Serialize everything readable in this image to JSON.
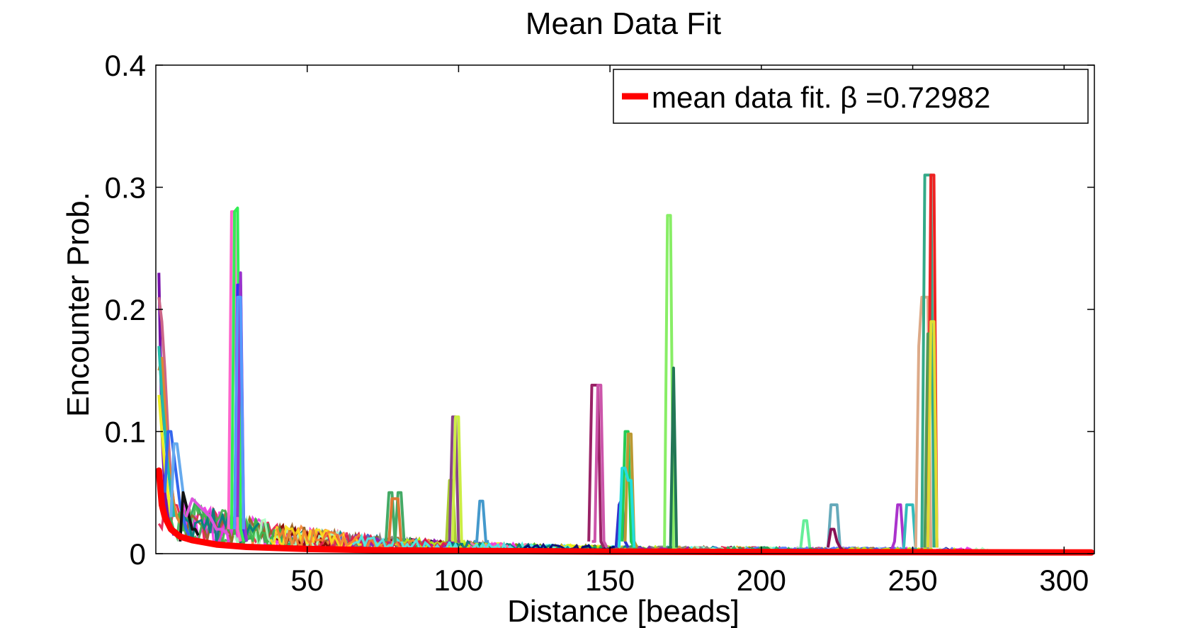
{
  "chart_data": {
    "type": "line",
    "title": "Mean Data Fit",
    "xlabel": "Distance [beads]",
    "ylabel": "Encounter Prob.",
    "xlim": [
      0,
      310
    ],
    "ylim": [
      0,
      0.4
    ],
    "x_ticks": [
      50,
      100,
      150,
      200,
      250,
      300
    ],
    "x_tick_labels": [
      "50",
      "100",
      "150",
      "200",
      "250",
      "300"
    ],
    "y_ticks": [
      0,
      0.1,
      0.2,
      0.3,
      0.4
    ],
    "y_tick_labels": [
      "0",
      "0.1",
      "0.2",
      "0.3",
      "0.4"
    ],
    "grid": false,
    "legend": {
      "placement": "top-right",
      "entries": [
        {
          "label": "mean data fit. β =0.72982",
          "color": "#ff0000"
        }
      ]
    },
    "fit": {
      "name": "mean data fit. β =0.72982",
      "color": "#ff0000",
      "beta": 0.72982,
      "x": [
        1,
        2,
        3,
        5,
        8,
        12,
        20,
        30,
        50,
        75,
        100,
        150,
        200,
        250,
        300,
        309
      ],
      "y": [
        0.068,
        0.04,
        0.03,
        0.02,
        0.014,
        0.011,
        0.0075,
        0.0055,
        0.0038,
        0.0028,
        0.0023,
        0.0017,
        0.0014,
        0.0012,
        0.001,
        0.001
      ]
    },
    "series": [
      {
        "color": "#ff66cc",
        "x": [
          24,
          25,
          26,
          27,
          28
        ],
        "y": [
          0.02,
          0.28,
          0.28,
          0.02,
          0.01
        ]
      },
      {
        "color": "#33ee55",
        "x": [
          25,
          26,
          27,
          28,
          29
        ],
        "y": [
          0.02,
          0.28,
          0.283,
          0.02,
          0.01
        ]
      },
      {
        "color": "#3333ee",
        "x": [
          26,
          27,
          28,
          29,
          30
        ],
        "y": [
          0.02,
          0.22,
          0.22,
          0.02,
          0.01
        ]
      },
      {
        "color": "#9933cc",
        "x": [
          27,
          28,
          29,
          30
        ],
        "y": [
          0.03,
          0.23,
          0.03,
          0.01
        ]
      },
      {
        "color": "#5599ff",
        "x": [
          26,
          27,
          28,
          29
        ],
        "y": [
          0.02,
          0.21,
          0.21,
          0.02
        ]
      },
      {
        "color": "#44aa66",
        "x": [
          76,
          77,
          78,
          79,
          80,
          81,
          82
        ],
        "y": [
          0.01,
          0.05,
          0.05,
          0.01,
          0.05,
          0.05,
          0.01
        ]
      },
      {
        "color": "#dd7733",
        "x": [
          77,
          78,
          79,
          80,
          81
        ],
        "y": [
          0.01,
          0.045,
          0.045,
          0.045,
          0.01
        ]
      },
      {
        "color": "#aacc33",
        "x": [
          96,
          97,
          98,
          99,
          100
        ],
        "y": [
          0.01,
          0.06,
          0.06,
          0.01,
          0.01
        ]
      },
      {
        "color": "#884488",
        "x": [
          97,
          98,
          99,
          100,
          101
        ],
        "y": [
          0.01,
          0.112,
          0.112,
          0.01,
          0.01
        ]
      },
      {
        "color": "#ccee44",
        "x": [
          98,
          99,
          100,
          101,
          102
        ],
        "y": [
          0.01,
          0.112,
          0.112,
          0.01,
          0.01
        ]
      },
      {
        "color": "#4499cc",
        "x": [
          105,
          106,
          107,
          108,
          109,
          110
        ],
        "y": [
          0.01,
          0.01,
          0.043,
          0.043,
          0.01,
          0.01
        ]
      },
      {
        "color": "#992266",
        "x": [
          143,
          144,
          145,
          146,
          147,
          148
        ],
        "y": [
          0.01,
          0.138,
          0.138,
          0.138,
          0.01,
          0.005
        ]
      },
      {
        "color": "#cc55aa",
        "x": [
          144,
          145,
          146,
          147,
          148,
          149
        ],
        "y": [
          0.01,
          0.01,
          0.138,
          0.138,
          0.01,
          0.005
        ]
      },
      {
        "color": "#3333cc",
        "x": [
          152,
          153,
          154,
          155,
          156
        ],
        "y": [
          0.005,
          0.04,
          0.045,
          0.01,
          0.005
        ]
      },
      {
        "color": "#22cc55",
        "x": [
          154,
          155,
          156,
          157,
          158,
          159
        ],
        "y": [
          0.01,
          0.1,
          0.1,
          0.01,
          0.005,
          0.005
        ]
      },
      {
        "color": "#bb9933",
        "x": [
          155,
          156,
          157,
          158,
          159
        ],
        "y": [
          0.01,
          0.098,
          0.098,
          0.01,
          0.005
        ]
      },
      {
        "color": "#22dddd",
        "x": [
          153,
          154,
          155,
          156,
          157,
          158
        ],
        "y": [
          0.005,
          0.07,
          0.07,
          0.06,
          0.06,
          0.005
        ]
      },
      {
        "color": "#88ee66",
        "x": [
          168,
          169,
          170,
          171,
          172
        ],
        "y": [
          0.005,
          0.277,
          0.277,
          0.005,
          0.005
        ]
      },
      {
        "color": "#227755",
        "x": [
          169,
          170,
          171,
          172
        ],
        "y": [
          0.005,
          0.005,
          0.152,
          0.005
        ]
      },
      {
        "color": "#66ee99",
        "x": [
          213,
          214,
          215,
          216
        ],
        "y": [
          0.005,
          0.027,
          0.027,
          0.005
        ]
      },
      {
        "color": "#66aabb",
        "x": [
          222,
          223,
          224,
          225,
          226,
          227
        ],
        "y": [
          0.005,
          0.04,
          0.04,
          0.04,
          0.005,
          0.003
        ]
      },
      {
        "color": "#881155",
        "x": [
          222,
          223,
          224,
          225,
          226,
          227,
          228
        ],
        "y": [
          0.005,
          0.02,
          0.02,
          0.01,
          0.005,
          0.003,
          0.003
        ]
      },
      {
        "color": "#aa33cc",
        "x": [
          243,
          244,
          245,
          246,
          247,
          248
        ],
        "y": [
          0.003,
          0.01,
          0.04,
          0.04,
          0.005,
          0.003
        ]
      },
      {
        "color": "#33bbbb",
        "x": [
          247,
          248,
          249,
          250,
          251
        ],
        "y": [
          0.003,
          0.04,
          0.04,
          0.04,
          0.003
        ]
      },
      {
        "color": "#ddaa88",
        "x": [
          251,
          252,
          253,
          254,
          255,
          256
        ],
        "y": [
          0.005,
          0.17,
          0.21,
          0.21,
          0.21,
          0.005
        ]
      },
      {
        "color": "#33aa88",
        "x": [
          253,
          254,
          255,
          256,
          257
        ],
        "y": [
          0.005,
          0.31,
          0.31,
          0.31,
          0.005
        ]
      },
      {
        "color": "#ee2222",
        "x": [
          255,
          256,
          257,
          258
        ],
        "y": [
          0.005,
          0.31,
          0.31,
          0.005
        ]
      },
      {
        "color": "#559955",
        "x": [
          254,
          255,
          256,
          257,
          258
        ],
        "y": [
          0.005,
          0.18,
          0.18,
          0.18,
          0.005
        ]
      },
      {
        "color": "#dddd33",
        "x": [
          255,
          256,
          257,
          258
        ],
        "y": [
          0.005,
          0.19,
          0.19,
          0.005
        ]
      },
      {
        "color": "#7711aa",
        "x": [
          1,
          2,
          3,
          4,
          5,
          6
        ],
        "y": [
          0.23,
          0.1,
          0.05,
          0.03,
          0.02,
          0.015
        ]
      },
      {
        "color": "#cc6688",
        "x": [
          1,
          2,
          3,
          4,
          5,
          6,
          7
        ],
        "y": [
          0.21,
          0.19,
          0.15,
          0.1,
          0.06,
          0.04,
          0.03
        ]
      },
      {
        "color": "#dd8833",
        "x": [
          1,
          2,
          3,
          4,
          5,
          6,
          7,
          8
        ],
        "y": [
          0.15,
          0.16,
          0.12,
          0.08,
          0.06,
          0.04,
          0.03,
          0.025
        ]
      },
      {
        "color": "#22bbaa",
        "x": [
          1,
          2,
          3,
          4,
          5,
          6
        ],
        "y": [
          0.17,
          0.13,
          0.1,
          0.07,
          0.05,
          0.03
        ]
      },
      {
        "color": "#eeee22",
        "x": [
          1,
          2,
          3,
          4,
          5
        ],
        "y": [
          0.13,
          0.1,
          0.07,
          0.05,
          0.03
        ]
      },
      {
        "color": "#3366ee",
        "x": [
          3,
          4,
          5,
          6,
          7,
          8,
          9,
          10,
          11
        ],
        "y": [
          0.05,
          0.1,
          0.1,
          0.08,
          0.06,
          0.04,
          0.03,
          0.02,
          0.015
        ]
      },
      {
        "color": "#66aaee",
        "x": [
          5,
          6,
          7,
          8,
          9,
          10,
          11,
          12
        ],
        "y": [
          0.03,
          0.09,
          0.09,
          0.07,
          0.05,
          0.04,
          0.03,
          0.02
        ]
      },
      {
        "color": "#111111",
        "x": [
          8,
          9,
          10,
          11,
          12,
          13,
          14
        ],
        "y": [
          0.01,
          0.05,
          0.04,
          0.03,
          0.02,
          0.02,
          0.015
        ]
      },
      {
        "color": "#dd55dd",
        "x": [
          10,
          12,
          14,
          16,
          18,
          20,
          22,
          24
        ],
        "y": [
          0.03,
          0.045,
          0.04,
          0.035,
          0.03,
          0.02,
          0.02,
          0.015
        ]
      }
    ]
  }
}
